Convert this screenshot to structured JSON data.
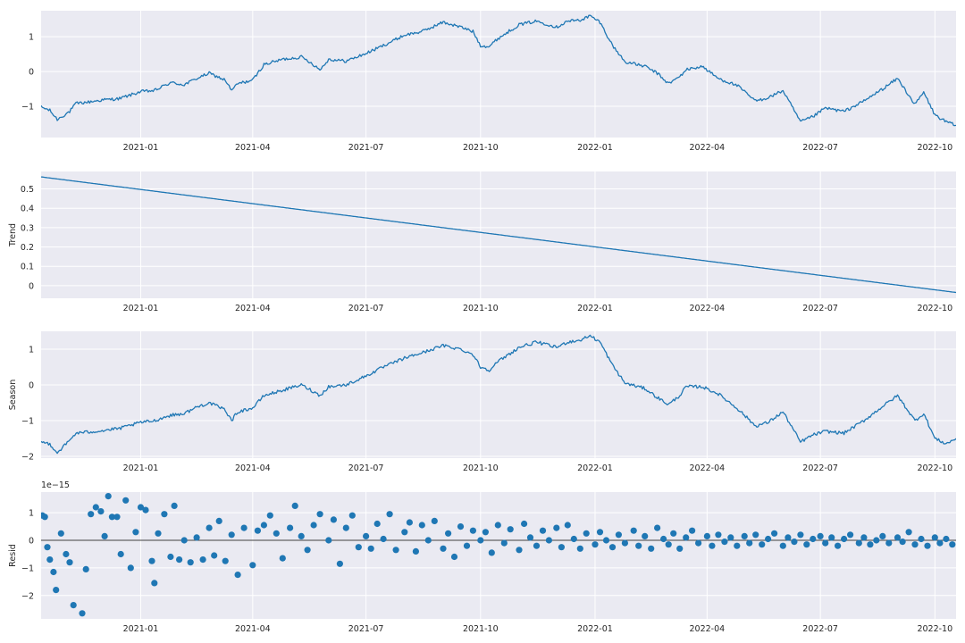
{
  "colors": {
    "panel_background": "#eaeaf2",
    "grid": "#ffffff",
    "series": "#1f77b4",
    "zero_line": "#000000"
  },
  "chart_data": [
    {
      "type": "line",
      "ylabel": "",
      "ylim": [
        -1.9,
        1.75
      ],
      "xlim": [
        "2020-10-13",
        "2022-10-18"
      ],
      "yticks": [
        -1,
        0,
        1
      ],
      "x_tick_labels": [
        "2021-01",
        "2021-04",
        "2021-07",
        "2021-10",
        "2022-01",
        "2022-04",
        "2022-07",
        "2022-10"
      ],
      "grid": true,
      "anchors": [
        [
          "2020-10-13",
          -1.02
        ],
        [
          "2020-10-20",
          -1.12
        ],
        [
          "2020-10-26",
          -1.38
        ],
        [
          "2020-11-05",
          -1.15
        ],
        [
          "2020-11-10",
          -0.92
        ],
        [
          "2020-11-20",
          -0.88
        ],
        [
          "2020-12-01",
          -0.82
        ],
        [
          "2020-12-15",
          -0.78
        ],
        [
          "2021-01-01",
          -0.58
        ],
        [
          "2021-01-12",
          -0.55
        ],
        [
          "2021-01-25",
          -0.32
        ],
        [
          "2021-02-05",
          -0.38
        ],
        [
          "2021-02-15",
          -0.2
        ],
        [
          "2021-02-25",
          -0.05
        ],
        [
          "2021-03-10",
          -0.25
        ],
        [
          "2021-03-15",
          -0.55
        ],
        [
          "2021-03-20",
          -0.35
        ],
        [
          "2021-04-01",
          -0.25
        ],
        [
          "2021-04-10",
          0.2
        ],
        [
          "2021-04-25",
          0.35
        ],
        [
          "2021-05-10",
          0.42
        ],
        [
          "2021-05-18",
          0.25
        ],
        [
          "2021-05-25",
          0.05
        ],
        [
          "2021-06-01",
          0.35
        ],
        [
          "2021-06-15",
          0.3
        ],
        [
          "2021-07-01",
          0.52
        ],
        [
          "2021-07-15",
          0.75
        ],
        [
          "2021-08-01",
          1.05
        ],
        [
          "2021-08-15",
          1.15
        ],
        [
          "2021-09-01",
          1.42
        ],
        [
          "2021-09-15",
          1.28
        ],
        [
          "2021-09-25",
          1.15
        ],
        [
          "2021-10-01",
          0.75
        ],
        [
          "2021-10-08",
          0.72
        ],
        [
          "2021-10-15",
          0.95
        ],
        [
          "2021-11-01",
          1.35
        ],
        [
          "2021-11-15",
          1.45
        ],
        [
          "2021-12-01",
          1.28
        ],
        [
          "2021-12-10",
          1.45
        ],
        [
          "2021-12-20",
          1.48
        ],
        [
          "2021-12-28",
          1.6
        ],
        [
          "2022-01-05",
          1.42
        ],
        [
          "2022-01-15",
          0.75
        ],
        [
          "2022-01-25",
          0.28
        ],
        [
          "2022-02-10",
          0.15
        ],
        [
          "2022-02-20",
          -0.05
        ],
        [
          "2022-03-01",
          -0.35
        ],
        [
          "2022-03-10",
          -0.15
        ],
        [
          "2022-03-15",
          0.05
        ],
        [
          "2022-03-28",
          0.15
        ],
        [
          "2022-04-10",
          -0.2
        ],
        [
          "2022-04-25",
          -0.4
        ],
        [
          "2022-05-10",
          -0.85
        ],
        [
          "2022-05-20",
          -0.75
        ],
        [
          "2022-06-01",
          -0.55
        ],
        [
          "2022-06-15",
          -1.45
        ],
        [
          "2022-06-25",
          -1.3
        ],
        [
          "2022-07-05",
          -1.05
        ],
        [
          "2022-07-20",
          -1.15
        ],
        [
          "2022-08-05",
          -0.85
        ],
        [
          "2022-08-20",
          -0.5
        ],
        [
          "2022-09-01",
          -0.2
        ],
        [
          "2022-09-15",
          -0.95
        ],
        [
          "2022-09-22",
          -0.6
        ],
        [
          "2022-10-01",
          -1.25
        ],
        [
          "2022-10-10",
          -1.45
        ],
        [
          "2022-10-18",
          -1.55
        ]
      ]
    },
    {
      "type": "line",
      "ylabel": "Trend",
      "ylim": [
        -0.065,
        0.59
      ],
      "xlim": [
        "2020-10-13",
        "2022-10-18"
      ],
      "yticks": [
        0.0,
        0.1,
        0.2,
        0.3,
        0.4,
        0.5
      ],
      "x_tick_labels": [
        "2021-01",
        "2021-04",
        "2021-07",
        "2021-10",
        "2022-01",
        "2022-04",
        "2022-07",
        "2022-10"
      ],
      "grid": true,
      "anchors": [
        [
          "2020-10-13",
          0.562
        ],
        [
          "2022-10-18",
          -0.035
        ]
      ]
    },
    {
      "type": "line",
      "ylabel": "Season",
      "ylim": [
        -2.05,
        1.5
      ],
      "xlim": [
        "2020-10-13",
        "2022-10-18"
      ],
      "yticks": [
        -2,
        -1,
        0,
        1
      ],
      "x_tick_labels": [
        "2021-01",
        "2021-04",
        "2021-07",
        "2021-10",
        "2022-01",
        "2022-04",
        "2022-07",
        "2022-10"
      ],
      "grid": true,
      "anchors": [
        [
          "2020-10-13",
          -1.6
        ],
        [
          "2020-10-20",
          -1.65
        ],
        [
          "2020-10-26",
          -1.9
        ],
        [
          "2020-11-05",
          -1.55
        ],
        [
          "2020-11-10",
          -1.35
        ],
        [
          "2020-11-20",
          -1.32
        ],
        [
          "2020-12-01",
          -1.28
        ],
        [
          "2020-12-15",
          -1.22
        ],
        [
          "2021-01-01",
          -1.05
        ],
        [
          "2021-01-12",
          -1.0
        ],
        [
          "2021-01-25",
          -0.85
        ],
        [
          "2021-02-05",
          -0.8
        ],
        [
          "2021-02-15",
          -0.62
        ],
        [
          "2021-02-25",
          -0.5
        ],
        [
          "2021-03-10",
          -0.7
        ],
        [
          "2021-03-15",
          -1.0
        ],
        [
          "2021-03-20",
          -0.75
        ],
        [
          "2021-04-01",
          -0.65
        ],
        [
          "2021-04-10",
          -0.3
        ],
        [
          "2021-04-25",
          -0.15
        ],
        [
          "2021-05-10",
          0.0
        ],
        [
          "2021-05-18",
          -0.15
        ],
        [
          "2021-05-25",
          -0.3
        ],
        [
          "2021-06-01",
          -0.05
        ],
        [
          "2021-06-15",
          0.0
        ],
        [
          "2021-07-01",
          0.25
        ],
        [
          "2021-07-15",
          0.5
        ],
        [
          "2021-08-01",
          0.75
        ],
        [
          "2021-08-15",
          0.9
        ],
        [
          "2021-09-01",
          1.1
        ],
        [
          "2021-09-15",
          1.0
        ],
        [
          "2021-09-25",
          0.85
        ],
        [
          "2021-10-01",
          0.5
        ],
        [
          "2021-10-08",
          0.42
        ],
        [
          "2021-10-15",
          0.65
        ],
        [
          "2021-11-01",
          1.05
        ],
        [
          "2021-11-15",
          1.2
        ],
        [
          "2021-12-01",
          1.05
        ],
        [
          "2021-12-10",
          1.2
        ],
        [
          "2021-12-20",
          1.25
        ],
        [
          "2021-12-28",
          1.38
        ],
        [
          "2022-01-05",
          1.2
        ],
        [
          "2022-01-15",
          0.55
        ],
        [
          "2022-01-25",
          0.05
        ],
        [
          "2022-02-10",
          -0.1
        ],
        [
          "2022-02-20",
          -0.35
        ],
        [
          "2022-03-01",
          -0.55
        ],
        [
          "2022-03-10",
          -0.3
        ],
        [
          "2022-03-15",
          -0.05
        ],
        [
          "2022-03-28",
          -0.05
        ],
        [
          "2022-04-10",
          -0.25
        ],
        [
          "2022-04-25",
          -0.65
        ],
        [
          "2022-05-10",
          -1.15
        ],
        [
          "2022-05-20",
          -1.05
        ],
        [
          "2022-06-01",
          -0.75
        ],
        [
          "2022-06-15",
          -1.6
        ],
        [
          "2022-06-25",
          -1.4
        ],
        [
          "2022-07-05",
          -1.3
        ],
        [
          "2022-07-20",
          -1.35
        ],
        [
          "2022-08-05",
          -1.0
        ],
        [
          "2022-08-20",
          -0.6
        ],
        [
          "2022-09-01",
          -0.3
        ],
        [
          "2022-09-15",
          -1.0
        ],
        [
          "2022-09-22",
          -0.8
        ],
        [
          "2022-10-01",
          -1.5
        ],
        [
          "2022-10-10",
          -1.65
        ],
        [
          "2022-10-18",
          -1.5
        ]
      ]
    },
    {
      "type": "scatter",
      "ylabel": "Resid",
      "offset_label": "1e−15",
      "ylim": [
        -2.85,
        1.75
      ],
      "xlim": [
        "2020-10-13",
        "2022-10-18"
      ],
      "yticks": [
        -2,
        -1,
        0,
        1
      ],
      "x_tick_labels": [
        "2021-01",
        "2021-04",
        "2021-07",
        "2021-10",
        "2022-01",
        "2022-04",
        "2022-07",
        "2022-10"
      ],
      "grid": true,
      "zero_line": true,
      "points": [
        [
          "2020-10-14",
          0.9
        ],
        [
          "2020-10-16",
          0.85
        ],
        [
          "2020-10-18",
          -0.25
        ],
        [
          "2020-10-20",
          -0.7
        ],
        [
          "2020-10-23",
          -1.15
        ],
        [
          "2020-10-25",
          -1.8
        ],
        [
          "2020-10-29",
          0.25
        ],
        [
          "2020-11-02",
          -0.5
        ],
        [
          "2020-11-05",
          -0.8
        ],
        [
          "2020-11-08",
          -2.35
        ],
        [
          "2020-11-15",
          -2.65
        ],
        [
          "2020-11-18",
          -1.05
        ],
        [
          "2020-11-22",
          0.95
        ],
        [
          "2020-11-26",
          1.2
        ],
        [
          "2020-11-30",
          1.05
        ],
        [
          "2020-12-03",
          0.15
        ],
        [
          "2020-12-06",
          1.6
        ],
        [
          "2020-12-09",
          0.85
        ],
        [
          "2020-12-13",
          0.85
        ],
        [
          "2020-12-16",
          -0.5
        ],
        [
          "2020-12-20",
          1.45
        ],
        [
          "2020-12-24",
          -1.0
        ],
        [
          "2020-12-28",
          0.3
        ],
        [
          "2021-01-01",
          1.2
        ],
        [
          "2021-01-05",
          1.1
        ],
        [
          "2021-01-10",
          -0.75
        ],
        [
          "2021-01-12",
          -1.55
        ],
        [
          "2021-01-15",
          0.25
        ],
        [
          "2021-01-20",
          0.95
        ],
        [
          "2021-01-25",
          -0.6
        ],
        [
          "2021-01-28",
          1.25
        ],
        [
          "2021-02-01",
          -0.7
        ],
        [
          "2021-02-05",
          0.0
        ],
        [
          "2021-02-10",
          -0.8
        ],
        [
          "2021-02-15",
          0.1
        ],
        [
          "2021-02-20",
          -0.7
        ],
        [
          "2021-02-25",
          0.45
        ],
        [
          "2021-03-01",
          -0.55
        ],
        [
          "2021-03-05",
          0.7
        ],
        [
          "2021-03-10",
          -0.75
        ],
        [
          "2021-03-15",
          0.2
        ],
        [
          "2021-03-20",
          -1.25
        ],
        [
          "2021-03-25",
          0.45
        ],
        [
          "2021-04-01",
          -0.9
        ],
        [
          "2021-04-05",
          0.35
        ],
        [
          "2021-04-10",
          0.55
        ],
        [
          "2021-04-15",
          0.9
        ],
        [
          "2021-04-20",
          0.25
        ],
        [
          "2021-04-25",
          -0.65
        ],
        [
          "2021-05-01",
          0.45
        ],
        [
          "2021-05-05",
          1.25
        ],
        [
          "2021-05-10",
          0.15
        ],
        [
          "2021-05-15",
          -0.35
        ],
        [
          "2021-05-20",
          0.55
        ],
        [
          "2021-05-25",
          0.95
        ],
        [
          "2021-06-01",
          0.0
        ],
        [
          "2021-06-05",
          0.75
        ],
        [
          "2021-06-10",
          -0.85
        ],
        [
          "2021-06-15",
          0.45
        ],
        [
          "2021-06-20",
          0.9
        ],
        [
          "2021-06-25",
          -0.25
        ],
        [
          "2021-07-01",
          0.15
        ],
        [
          "2021-07-05",
          -0.3
        ],
        [
          "2021-07-10",
          0.6
        ],
        [
          "2021-07-15",
          0.05
        ],
        [
          "2021-07-20",
          0.95
        ],
        [
          "2021-07-25",
          -0.35
        ],
        [
          "2021-08-01",
          0.3
        ],
        [
          "2021-08-05",
          0.65
        ],
        [
          "2021-08-10",
          -0.4
        ],
        [
          "2021-08-15",
          0.55
        ],
        [
          "2021-08-20",
          0.0
        ],
        [
          "2021-08-25",
          0.7
        ],
        [
          "2021-09-01",
          -0.3
        ],
        [
          "2021-09-05",
          0.25
        ],
        [
          "2021-09-10",
          -0.6
        ],
        [
          "2021-09-15",
          0.5
        ],
        [
          "2021-09-20",
          -0.2
        ],
        [
          "2021-09-25",
          0.35
        ],
        [
          "2021-10-01",
          0.0
        ],
        [
          "2021-10-05",
          0.3
        ],
        [
          "2021-10-10",
          -0.45
        ],
        [
          "2021-10-15",
          0.55
        ],
        [
          "2021-10-20",
          -0.1
        ],
        [
          "2021-10-25",
          0.4
        ],
        [
          "2021-11-01",
          -0.35
        ],
        [
          "2021-11-05",
          0.6
        ],
        [
          "2021-11-10",
          0.1
        ],
        [
          "2021-11-15",
          -0.2
        ],
        [
          "2021-11-20",
          0.35
        ],
        [
          "2021-11-25",
          0.0
        ],
        [
          "2021-12-01",
          0.45
        ],
        [
          "2021-12-05",
          -0.25
        ],
        [
          "2021-12-10",
          0.55
        ],
        [
          "2021-12-15",
          0.05
        ],
        [
          "2021-12-20",
          -0.3
        ],
        [
          "2021-12-25",
          0.25
        ],
        [
          "2022-01-01",
          -0.15
        ],
        [
          "2022-01-05",
          0.3
        ],
        [
          "2022-01-10",
          0.0
        ],
        [
          "2022-01-15",
          -0.25
        ],
        [
          "2022-01-20",
          0.2
        ],
        [
          "2022-01-25",
          -0.1
        ],
        [
          "2022-02-01",
          0.35
        ],
        [
          "2022-02-05",
          -0.2
        ],
        [
          "2022-02-10",
          0.15
        ],
        [
          "2022-02-15",
          -0.3
        ],
        [
          "2022-02-20",
          0.45
        ],
        [
          "2022-02-25",
          0.05
        ],
        [
          "2022-03-01",
          -0.15
        ],
        [
          "2022-03-05",
          0.25
        ],
        [
          "2022-03-10",
          -0.3
        ],
        [
          "2022-03-15",
          0.1
        ],
        [
          "2022-03-20",
          0.35
        ],
        [
          "2022-03-25",
          -0.1
        ],
        [
          "2022-04-01",
          0.15
        ],
        [
          "2022-04-05",
          -0.2
        ],
        [
          "2022-04-10",
          0.2
        ],
        [
          "2022-04-15",
          -0.05
        ],
        [
          "2022-04-20",
          0.1
        ],
        [
          "2022-04-25",
          -0.2
        ],
        [
          "2022-05-01",
          0.15
        ],
        [
          "2022-05-05",
          -0.1
        ],
        [
          "2022-05-10",
          0.2
        ],
        [
          "2022-05-15",
          -0.15
        ],
        [
          "2022-05-20",
          0.05
        ],
        [
          "2022-05-25",
          0.25
        ],
        [
          "2022-06-01",
          -0.2
        ],
        [
          "2022-06-05",
          0.1
        ],
        [
          "2022-06-10",
          -0.05
        ],
        [
          "2022-06-15",
          0.2
        ],
        [
          "2022-06-20",
          -0.15
        ],
        [
          "2022-06-25",
          0.05
        ],
        [
          "2022-07-01",
          0.15
        ],
        [
          "2022-07-05",
          -0.1
        ],
        [
          "2022-07-10",
          0.1
        ],
        [
          "2022-07-15",
          -0.2
        ],
        [
          "2022-07-20",
          0.05
        ],
        [
          "2022-07-25",
          0.2
        ],
        [
          "2022-08-01",
          -0.1
        ],
        [
          "2022-08-05",
          0.1
        ],
        [
          "2022-08-10",
          -0.15
        ],
        [
          "2022-08-15",
          0.0
        ],
        [
          "2022-08-20",
          0.15
        ],
        [
          "2022-08-25",
          -0.1
        ],
        [
          "2022-09-01",
          0.1
        ],
        [
          "2022-09-05",
          -0.05
        ],
        [
          "2022-09-10",
          0.3
        ],
        [
          "2022-09-15",
          -0.15
        ],
        [
          "2022-09-20",
          0.05
        ],
        [
          "2022-09-25",
          -0.2
        ],
        [
          "2022-10-01",
          0.1
        ],
        [
          "2022-10-05",
          -0.1
        ],
        [
          "2022-10-10",
          0.05
        ],
        [
          "2022-10-15",
          -0.15
        ]
      ]
    }
  ]
}
